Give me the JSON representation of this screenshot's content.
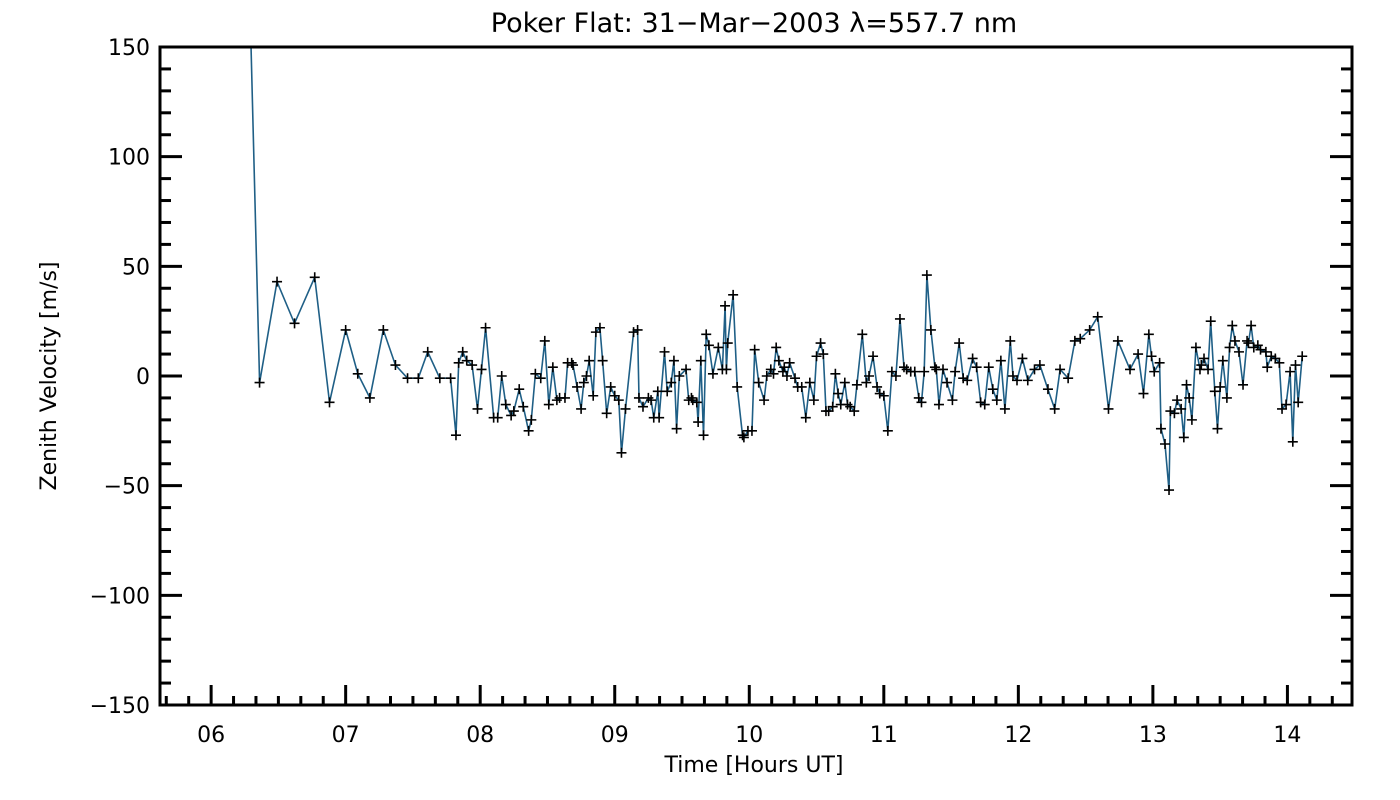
{
  "chart_data": {
    "type": "line",
    "title": "Poker Flat: 31−Mar−2003 λ=557.7 nm",
    "xlabel": "Time [Hours UT]",
    "ylabel": "Zenith Velocity [m/s]",
    "xlim": [
      5.62,
      14.48
    ],
    "ylim": [
      -150,
      150
    ],
    "xticks": [
      6,
      7,
      8,
      9,
      10,
      11,
      12,
      13,
      14
    ],
    "xtick_labels": [
      "06",
      "07",
      "08",
      "09",
      "10",
      "11",
      "12",
      "13",
      "14"
    ],
    "yticks": [
      150,
      100,
      50,
      0,
      -50,
      -100,
      -150
    ],
    "ytick_labels": [
      "150",
      "100",
      "50",
      "0",
      "−50",
      "−100",
      "−150"
    ],
    "grid": false,
    "marker": "plus",
    "line_color": "#1f5f86",
    "marker_color": "#000000",
    "series": [
      {
        "name": "zenith velocity",
        "x": [
          6.28,
          6.36,
          6.49,
          6.62,
          6.77,
          6.88,
          7.0,
          7.09,
          7.18,
          7.28,
          7.37,
          7.46,
          7.54,
          7.61,
          7.7,
          7.78,
          7.82,
          7.84,
          7.87,
          7.9,
          7.94,
          7.98,
          8.01,
          8.04,
          8.1,
          8.13,
          8.16,
          8.19,
          8.23,
          8.25,
          8.29,
          8.32,
          8.36,
          8.38,
          8.41,
          8.45,
          8.48,
          8.51,
          8.54,
          8.57,
          8.59,
          8.63,
          8.65,
          8.68,
          8.69,
          8.72,
          8.75,
          8.77,
          8.79,
          8.81,
          8.84,
          8.86,
          8.89,
          8.91,
          8.94,
          8.97,
          9.0,
          9.03,
          9.05,
          9.08,
          9.14,
          9.17,
          9.18,
          9.21,
          9.25,
          9.27,
          9.29,
          9.32,
          9.33,
          9.37,
          9.39,
          9.42,
          9.44,
          9.46,
          9.48,
          9.53,
          9.55,
          9.57,
          9.58,
          9.61,
          9.62,
          9.64,
          9.66,
          9.68,
          9.7,
          9.73,
          9.77,
          9.8,
          9.82,
          9.83,
          9.84,
          9.88,
          9.91,
          9.95,
          9.96,
          9.99,
          10.02,
          10.04,
          10.07,
          10.11,
          10.13,
          10.16,
          10.18,
          10.2,
          10.22,
          10.25,
          10.26,
          10.28,
          10.3,
          10.34,
          10.36,
          10.39,
          10.42,
          10.45,
          10.48,
          10.5,
          10.53,
          10.55,
          10.57,
          10.59,
          10.62,
          10.64,
          10.66,
          10.68,
          10.71,
          10.73,
          10.75,
          10.78,
          10.8,
          10.84,
          10.87,
          10.89,
          10.92,
          10.95,
          10.97,
          11.0,
          11.03,
          11.06,
          11.09,
          11.12,
          11.15,
          11.17,
          11.2,
          11.23,
          11.26,
          11.28,
          11.3,
          11.32,
          11.35,
          11.38,
          11.39,
          11.41,
          11.44,
          11.47,
          11.51,
          11.53,
          11.56,
          11.59,
          11.62,
          11.66,
          11.69,
          11.72,
          11.75,
          11.78,
          11.81,
          11.84,
          11.87,
          11.9,
          11.94,
          11.96,
          11.99,
          12.03,
          12.07,
          12.12,
          12.16,
          12.22,
          12.27,
          12.31,
          12.37,
          12.42,
          12.46,
          12.53,
          12.59,
          12.67,
          12.74,
          12.83,
          12.89,
          12.93,
          12.97,
          12.99,
          13.01,
          13.05,
          13.06,
          13.09,
          13.12,
          13.13,
          13.16,
          13.18,
          13.21,
          13.23,
          13.25,
          13.27,
          13.29,
          13.32,
          13.35,
          13.36,
          13.38,
          13.41,
          13.43,
          13.46,
          13.48,
          13.5,
          13.52,
          13.55,
          13.57,
          13.59,
          13.61,
          13.64,
          13.67,
          13.7,
          13.71,
          13.73,
          13.75,
          13.78,
          13.8,
          13.84,
          13.85,
          13.88,
          13.91,
          13.94,
          13.96,
          13.99,
          14.02,
          14.04,
          14.06,
          14.08,
          14.11
        ],
        "y": [
          190,
          -3,
          43,
          24,
          45,
          -12,
          21,
          1,
          -10,
          21,
          5,
          -1,
          -1,
          11,
          -1,
          -1,
          -27,
          6,
          11,
          7,
          5,
          -15,
          3,
          22,
          -19,
          -19,
          0,
          -13,
          -18,
          -16,
          -6,
          -14,
          -25,
          -20,
          1,
          -1,
          16,
          -13,
          4,
          -11,
          -10,
          -10,
          6,
          6,
          5,
          -5,
          -15,
          -3,
          0,
          7,
          -9,
          20,
          22,
          7,
          -17,
          -5,
          -9,
          -11,
          -35,
          -15,
          20,
          21,
          -10,
          -14,
          -10,
          -11,
          -19,
          -7,
          -19,
          11,
          -7,
          -3,
          7,
          -24,
          0,
          3,
          -11,
          -10,
          -11,
          -12,
          -21,
          7,
          -27,
          19,
          14,
          1,
          13,
          3,
          32,
          3,
          15,
          37,
          -5,
          -27,
          -28,
          -25,
          -25,
          12,
          -3,
          -11,
          0,
          3,
          1,
          13,
          7,
          2,
          4,
          0,
          6,
          -1,
          -5,
          -5,
          -19,
          -3,
          -11,
          9,
          15,
          10,
          -16,
          -16,
          -14,
          1,
          -8,
          -13,
          -3,
          -13,
          -14,
          -16,
          -4,
          19,
          -3,
          0,
          9,
          -5,
          -8,
          -9,
          -25,
          2,
          0,
          26,
          4,
          3,
          2,
          2,
          -10,
          -12,
          2,
          46,
          21,
          4,
          3,
          -13,
          3,
          -3,
          -11,
          2,
          15,
          -1,
          -2,
          8,
          4,
          -12,
          -13,
          4,
          -6,
          -11,
          7,
          -15,
          16,
          0,
          -2,
          8,
          -2,
          3,
          5,
          -6,
          -15,
          3,
          -1,
          16,
          17,
          21,
          27,
          -15,
          16,
          3,
          10,
          -8,
          19,
          9,
          2,
          6,
          -24,
          -31,
          -52,
          -16,
          -17,
          -11,
          -15,
          -28,
          -4,
          -10,
          -20,
          13,
          3,
          5,
          8,
          3,
          25,
          -7,
          -24,
          -5,
          7,
          -10,
          13,
          23,
          16,
          11,
          -4,
          16,
          15,
          23,
          13,
          14,
          12,
          11,
          4,
          9,
          8,
          6,
          -15,
          -13,
          2,
          -30,
          5,
          -12,
          9
        ]
      }
    ]
  }
}
